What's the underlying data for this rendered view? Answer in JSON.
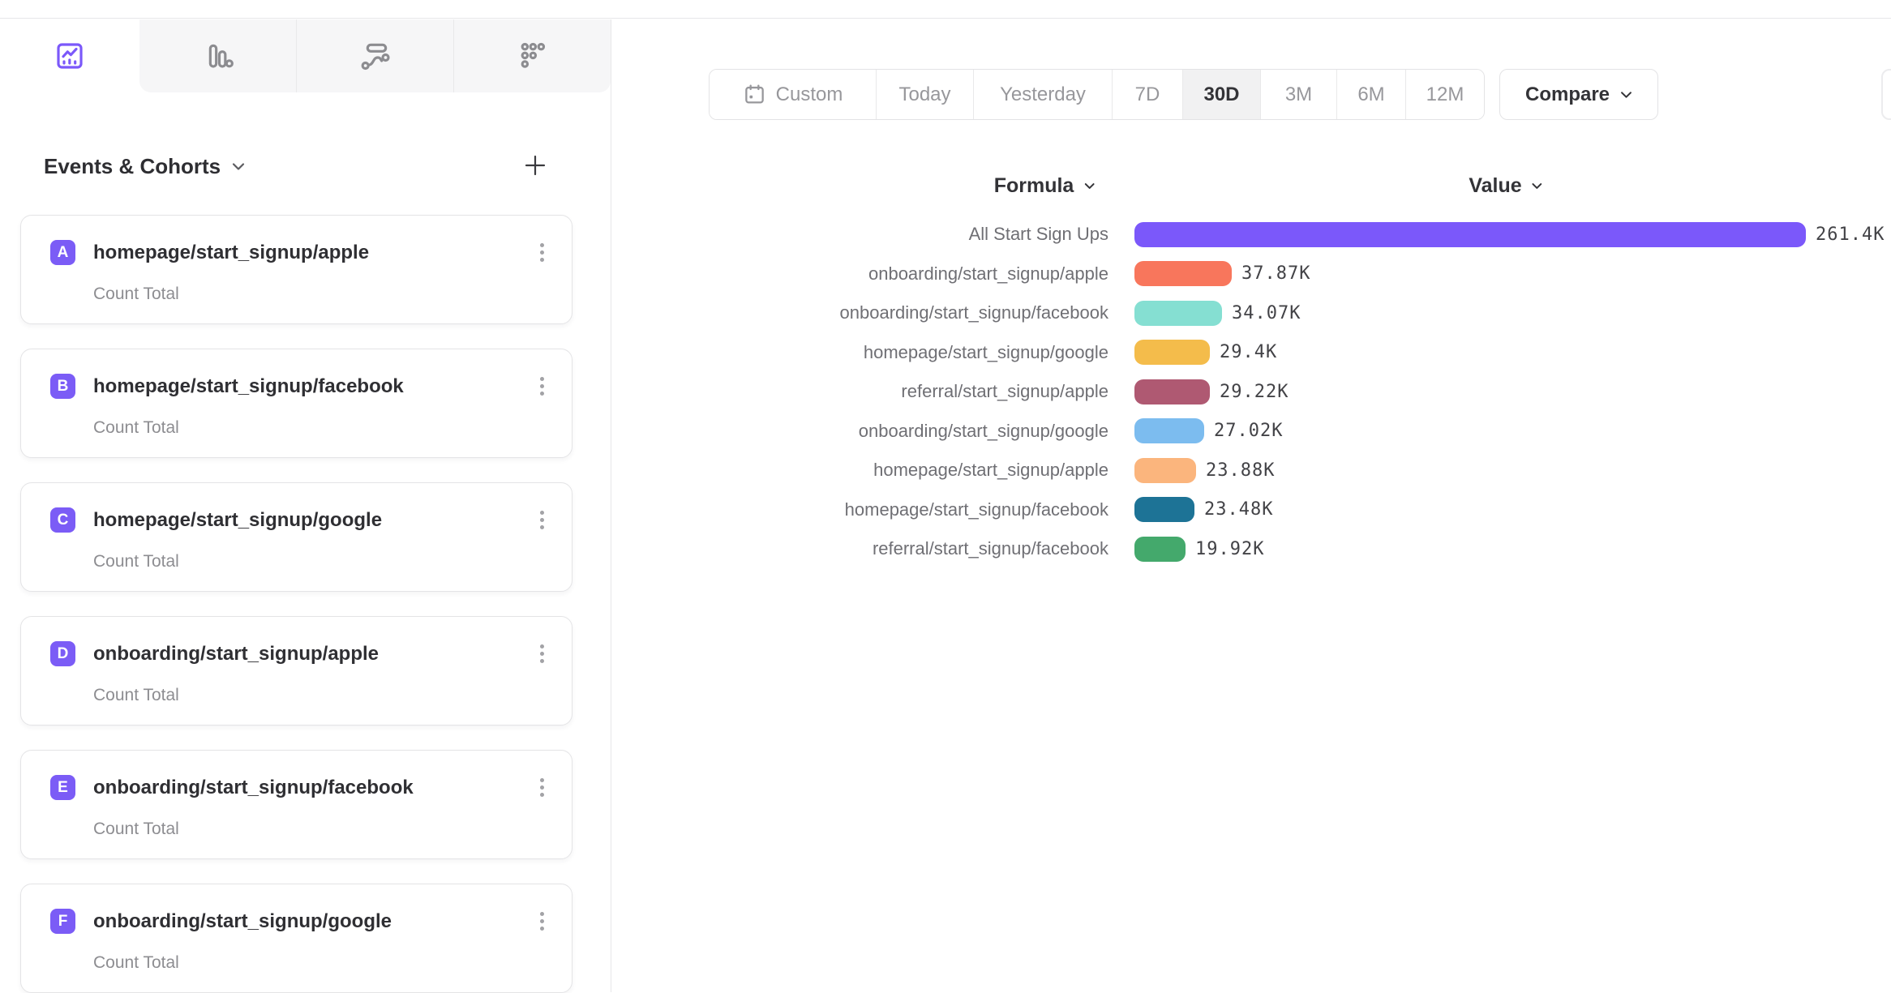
{
  "accent_color": "#7B58FA",
  "tabs": [
    {
      "name": "insights",
      "icon": "line-chart-icon",
      "active": true
    },
    {
      "name": "bars",
      "icon": "bar-chart-icon",
      "active": false
    },
    {
      "name": "flows",
      "icon": "flows-icon",
      "active": false
    },
    {
      "name": "retention",
      "icon": "retention-dots-icon",
      "active": false
    }
  ],
  "sidebar": {
    "title": "Events & Cohorts",
    "badge_color": "#7B5CF6",
    "events": [
      {
        "letter": "A",
        "name": "homepage/start_signup/apple",
        "metric": "Count Total"
      },
      {
        "letter": "B",
        "name": "homepage/start_signup/facebook",
        "metric": "Count Total"
      },
      {
        "letter": "C",
        "name": "homepage/start_signup/google",
        "metric": "Count Total"
      },
      {
        "letter": "D",
        "name": "onboarding/start_signup/apple",
        "metric": "Count Total"
      },
      {
        "letter": "E",
        "name": "onboarding/start_signup/facebook",
        "metric": "Count Total"
      },
      {
        "letter": "F",
        "name": "onboarding/start_signup/google",
        "metric": "Count Total"
      }
    ]
  },
  "toolbar": {
    "ranges": [
      "Custom",
      "Today",
      "Yesterday",
      "7D",
      "30D",
      "3M",
      "6M",
      "12M"
    ],
    "active_range": "30D",
    "compare_label": "Compare"
  },
  "chart_data": {
    "type": "bar",
    "orientation": "horizontal",
    "column_headers": {
      "formula": "Formula",
      "value": "Value"
    },
    "categories": [
      "All Start Sign Ups",
      "onboarding/start_signup/apple",
      "onboarding/start_signup/facebook",
      "homepage/start_signup/google",
      "referral/start_signup/apple",
      "onboarding/start_signup/google",
      "homepage/start_signup/apple",
      "homepage/start_signup/facebook",
      "referral/start_signup/facebook"
    ],
    "values": [
      261400,
      37870,
      34070,
      29400,
      29220,
      27020,
      23880,
      23480,
      19920
    ],
    "value_labels": [
      "261.4K",
      "37.87K",
      "34.07K",
      "29.4K",
      "29.22K",
      "27.02K",
      "23.88K",
      "23.48K",
      "19.92K"
    ],
    "bar_colors": [
      "#7B58FA",
      "#F8765C",
      "#85DFD2",
      "#F4BC4B",
      "#AF5972",
      "#7CBCEF",
      "#FBB57D",
      "#1D7396",
      "#44A96C"
    ],
    "xlim": [
      0,
      261400
    ],
    "grid": false,
    "legend": "none"
  }
}
